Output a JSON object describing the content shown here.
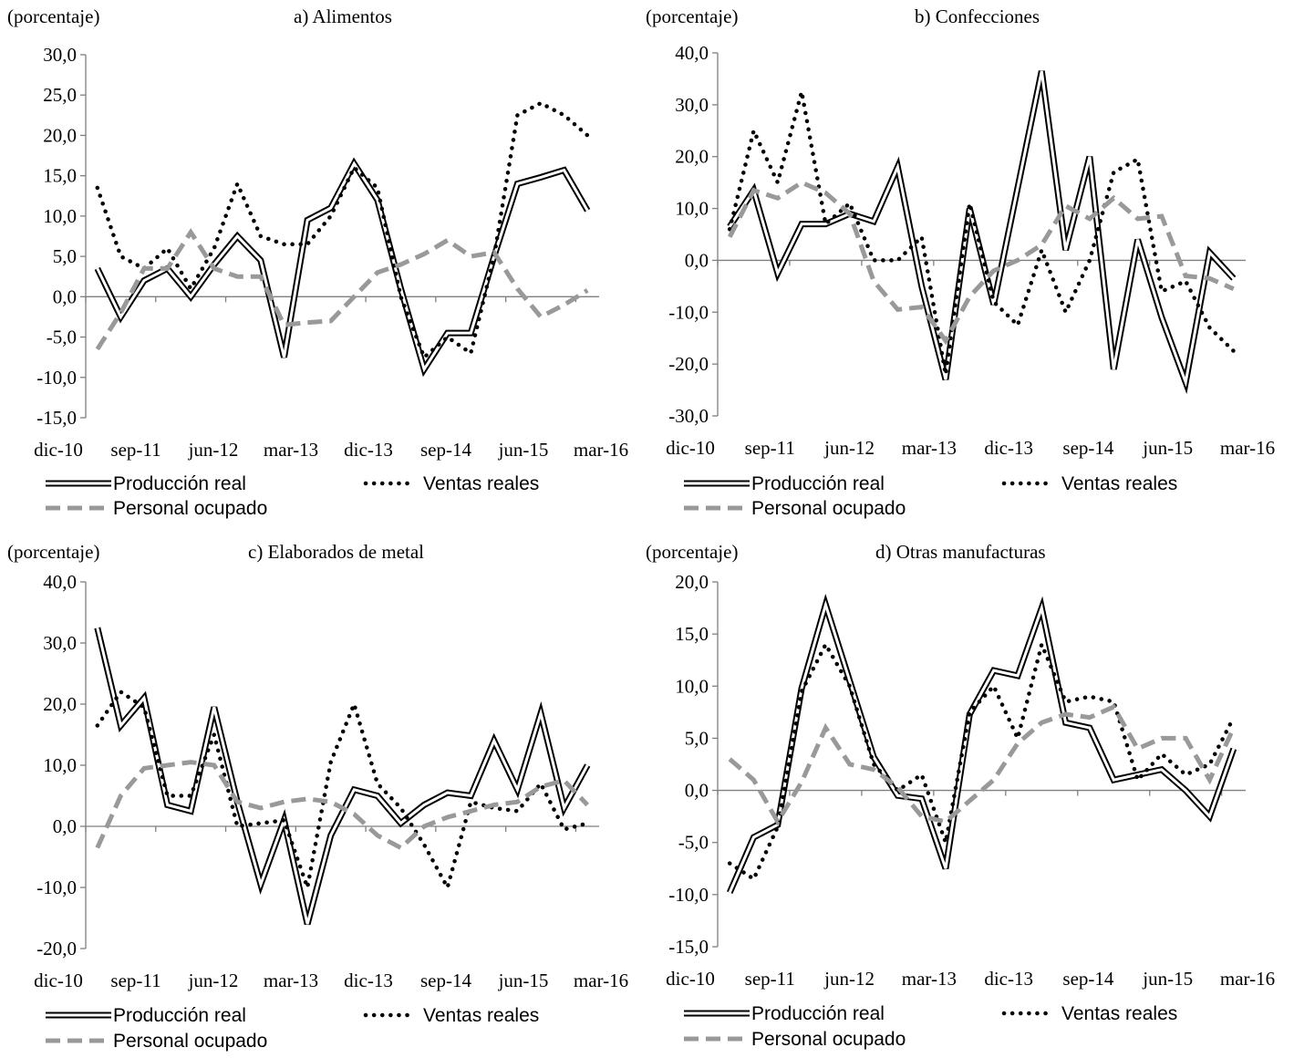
{
  "y_unit_label": "(porcentaje)",
  "legend": {
    "produccion": "Producción real",
    "ventas": "Ventas reales",
    "personal": "Personal ocupado"
  },
  "colors": {
    "produccion": "#000000",
    "ventas": "#000000",
    "personal": "#999999"
  },
  "chart_data": [
    {
      "type": "line",
      "title": "a) Alimentos",
      "ylabel": "(porcentaje)",
      "ylim": [
        -15,
        30
      ],
      "yticks": [
        "30,0",
        "25,0",
        "20,0",
        "15,0",
        "10,0",
        "5,0",
        "0,0",
        "-5,0",
        "-10,0",
        "-15,0"
      ],
      "x_tick_labels": [
        "dic-10",
        "sep-11",
        "jun-12",
        "mar-13",
        "dic-13",
        "sep-14",
        "jun-15",
        "mar-16"
      ],
      "n_points": 22,
      "series": [
        {
          "name": "Producción real",
          "values": [
            3.5,
            -2.5,
            2,
            3.5,
            0,
            4,
            7.5,
            4.5,
            -7.5,
            9.5,
            11,
            16.5,
            12,
            1,
            -9,
            -4.5,
            -4.5,
            5,
            14,
            14.8,
            15.7,
            10.7
          ]
        },
        {
          "name": "Ventas reales",
          "values": [
            13.5,
            5,
            3.5,
            6,
            1,
            6,
            14,
            7.5,
            6.5,
            6.5,
            10,
            16,
            13.5,
            0,
            -7.5,
            -5,
            -7,
            5,
            22.5,
            24,
            22.5,
            20
          ]
        },
        {
          "name": "Personal ocupado",
          "values": [
            -6.5,
            -2,
            3.5,
            3.5,
            8,
            3.5,
            2.5,
            2.5,
            -3.5,
            -3.2,
            -3,
            0,
            3,
            4,
            5.3,
            7,
            5,
            5.5,
            1,
            -2.5,
            -1,
            0.8
          ]
        }
      ]
    },
    {
      "type": "line",
      "title": "b) Confecciones",
      "ylabel": "(porcentaje)",
      "ylim": [
        -30,
        40
      ],
      "yticks": [
        "40,0",
        "30,0",
        "20,0",
        "10,0",
        "0,0",
        "-10,0",
        "-20,0",
        "-30,0"
      ],
      "x_tick_labels": [
        "dic-10",
        "sep-11",
        "jun-12",
        "mar-13",
        "dic-13",
        "sep-14",
        "jun-15",
        "mar-16"
      ],
      "n_points": 22,
      "series": [
        {
          "name": "Producción real",
          "values": [
            6.5,
            13.5,
            -2.5,
            7,
            7,
            9,
            7.5,
            18,
            -5,
            -23,
            10,
            -8.5,
            14,
            36.5,
            2,
            20,
            -21,
            4,
            -11,
            -23.5,
            1.5,
            -3.5
          ]
        },
        {
          "name": "Ventas reales",
          "values": [
            6,
            25,
            15,
            32.5,
            7,
            11,
            0,
            0,
            4.5,
            -22,
            11,
            -8,
            -12.5,
            2,
            -10,
            0,
            17,
            19.5,
            -6,
            -4,
            -13,
            -17.5
          ]
        },
        {
          "name": "Personal ocupado",
          "values": [
            4.5,
            13.5,
            12,
            15,
            13,
            9,
            -4,
            -9.5,
            -9,
            -15.5,
            -7,
            -2,
            0,
            3,
            10.5,
            8,
            12,
            8,
            8.5,
            -3,
            -3.5,
            -5.5
          ]
        }
      ]
    },
    {
      "type": "line",
      "title": "c) Elaborados de metal",
      "ylabel": "(porcentaje)",
      "ylim": [
        -20,
        40
      ],
      "yticks": [
        "40,0",
        "30,0",
        "20,0",
        "10,0",
        "0,0",
        "-10,0",
        "-20,0"
      ],
      "x_tick_labels": [
        "dic-10",
        "sep-11",
        "jun-12",
        "mar-13",
        "dic-13",
        "sep-14",
        "jun-15",
        "mar-16"
      ],
      "n_points": 22,
      "series": [
        {
          "name": "Producción real",
          "values": [
            32.5,
            16.5,
            21,
            3.5,
            2.5,
            19.5,
            4,
            -9.5,
            1,
            -16,
            -1.5,
            6,
            5,
            0.5,
            3.5,
            5.5,
            5,
            14,
            6,
            18.5,
            3,
            10
          ]
        },
        {
          "name": "Ventas reales",
          "values": [
            16.5,
            22,
            19.5,
            5,
            5,
            15,
            0,
            0.5,
            1,
            -10,
            10.5,
            20,
            7,
            3,
            -3,
            -10,
            4,
            3,
            2.5,
            7,
            -0.5,
            0.5
          ]
        },
        {
          "name": "Personal ocupado",
          "values": [
            -3.5,
            5,
            9.5,
            10,
            10.5,
            10,
            4,
            3,
            4,
            4.5,
            4,
            2,
            -1.5,
            -3.5,
            0,
            1.5,
            2.5,
            3.5,
            4,
            6.5,
            7.5,
            3.5
          ]
        }
      ]
    },
    {
      "type": "line",
      "title": "d) Otras manufacturas",
      "ylabel": "(porcentaje)",
      "ylim": [
        -15,
        20
      ],
      "yticks": [
        "20,0",
        "15,0",
        "10,0",
        "5,0",
        "0,0",
        "-5,0",
        "-10,0",
        "-15,0"
      ],
      "x_tick_labels": [
        "dic-10",
        "sep-11",
        "jun-12",
        "mar-13",
        "dic-13",
        "sep-14",
        "jun-15",
        "mar-16"
      ],
      "n_points": 22,
      "series": [
        {
          "name": "Producción real",
          "values": [
            -9.8,
            -4.5,
            -3.3,
            9.8,
            17.8,
            10.5,
            3.2,
            -0.5,
            -0.8,
            -7.5,
            7.3,
            11.5,
            11,
            17.5,
            6.5,
            6,
            1,
            1.5,
            2,
            0,
            -2.5,
            4
          ]
        },
        {
          "name": "Ventas reales",
          "values": [
            -7,
            -8.5,
            -3.5,
            9.5,
            14,
            10,
            2.5,
            0,
            1.5,
            -5,
            7.5,
            10,
            5,
            14,
            8.5,
            9,
            8.5,
            1,
            3.5,
            1.5,
            2.5,
            7
          ]
        },
        {
          "name": "Personal ocupado",
          "values": [
            3,
            1,
            -3,
            0.8,
            6,
            2.5,
            2,
            0.3,
            -2.5,
            -3,
            -1,
            1,
            4.5,
            6.5,
            7.3,
            7,
            8,
            4,
            5,
            5,
            1,
            6
          ]
        }
      ]
    }
  ]
}
